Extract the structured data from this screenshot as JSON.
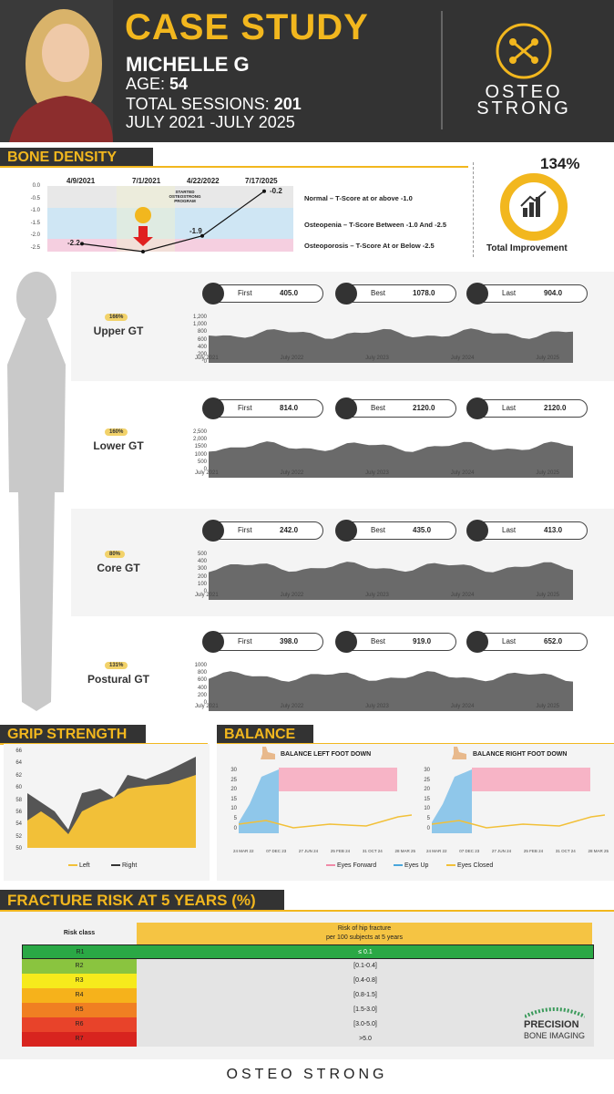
{
  "header": {
    "title": "CASE STUDY",
    "name": "MICHELLE G",
    "age_label": "AGE:",
    "age": "54",
    "sessions_label": "TOTAL SESSIONS:",
    "sessions": "201",
    "period": "JULY 2021 -JULY 2025",
    "brand": "OSTEO STRONG"
  },
  "bone_density": {
    "heading": "BONE DENSITY",
    "dates": [
      "4/9/2021",
      "7/1/2021",
      "4/22/2022",
      "7/17/2025"
    ],
    "yticks": [
      "0.0",
      "-0.5",
      "-1.0",
      "-1.5",
      "-2.0",
      "-2.5"
    ],
    "annotation": "STARTED OSTEOSTRONG PROGRAM",
    "points": [
      -2.2,
      -2.5,
      -1.9,
      -0.2
    ],
    "point_labels": [
      "-2.2",
      "-1.9",
      "-0.2"
    ],
    "legend": [
      "Normal – T-Score at or above -1.0",
      "Osteopenia – T-Score Between -1.0 And -2.5",
      "Osteoporosis – T-Score At or Below -2.5"
    ],
    "improvement": "134%",
    "improvement_label": "Total Improvement",
    "colors": {
      "normal": "#e8e8e8",
      "osteopenia": "#cfe6f4",
      "osteoporosis": "#f5cfe0",
      "accent": "#f2b71e"
    }
  },
  "gt": [
    {
      "name": "Upper GT",
      "pct": "166%",
      "first": "405.0",
      "best": "1078.0",
      "last": "904.0",
      "yticks": [
        "1,200",
        "1,000",
        "800",
        "600",
        "400",
        "200",
        "0"
      ]
    },
    {
      "name": "Lower GT",
      "pct": "160%",
      "first": "814.0",
      "best": "2120.0",
      "last": "2120.0",
      "yticks": [
        "2,500",
        "2,000",
        "1500",
        "1000",
        "500",
        "0"
      ]
    },
    {
      "name": "Core GT",
      "pct": "80%",
      "first": "242.0",
      "best": "435.0",
      "last": "413.0",
      "yticks": [
        "500",
        "400",
        "300",
        "200",
        "100",
        "0"
      ]
    },
    {
      "name": "Postural GT",
      "pct": "131%",
      "first": "398.0",
      "best": "919.0",
      "last": "652.0",
      "yticks": [
        "1000",
        "800",
        "600",
        "400",
        "200",
        "0"
      ]
    }
  ],
  "gt_labels": {
    "first": "First",
    "best": "Best",
    "last": "Last",
    "xticks": [
      "July 2021",
      "July 2022",
      "July 2023",
      "July 2024",
      "July 2025"
    ]
  },
  "grip": {
    "heading": "GRIP STRENGTH",
    "yticks": [
      "66",
      "64",
      "62",
      "60",
      "58",
      "56",
      "54",
      "52",
      "50"
    ],
    "legend_left": "Left",
    "legend_right": "Right"
  },
  "balance": {
    "heading": "BALANCE",
    "left_title": "BALANCE LEFT FOOT DOWN",
    "right_title": "BALANCE RIGHT FOOT DOWN",
    "yticks": [
      "30",
      "25",
      "20",
      "15",
      "10",
      "5",
      "0"
    ],
    "xticks": [
      "24 MAR 22",
      "07 DEC 23",
      "27 JUN 24",
      "25 FEB 24",
      "31 OCT 24",
      "28 MAR 25"
    ],
    "legend": [
      "Eyes Forward",
      "Eyes Up",
      "Eyes Closed"
    ]
  },
  "fracture": {
    "heading": "FRACTURE RISK AT 5 YEARS (%)",
    "col1": "Risk class",
    "col2a": "Risk of hip fracture",
    "col2b": "per 100 subjects at 5 years",
    "rows": [
      {
        "cls": "R1",
        "range": "≤ 0.1",
        "color": "#2aa845"
      },
      {
        "cls": "R2",
        "range": "[0.1-0.4]",
        "color": "#8ac43f"
      },
      {
        "cls": "R3",
        "range": "[0.4-0.8]",
        "color": "#f6ea1c"
      },
      {
        "cls": "R4",
        "range": "[0.8-1.5]",
        "color": "#f6b21b"
      },
      {
        "cls": "R5",
        "range": "[1.5-3.0]",
        "color": "#f07f22"
      },
      {
        "cls": "R6",
        "range": "[3.0-5.0]",
        "color": "#e8432a"
      },
      {
        "cls": "R7",
        "range": ">5.0",
        "color": "#d8241f"
      }
    ],
    "logo1": "PRECISION",
    "logo2": "BONE IMAGING"
  },
  "footer": {
    "brand": "OSTEO STRONG"
  }
}
